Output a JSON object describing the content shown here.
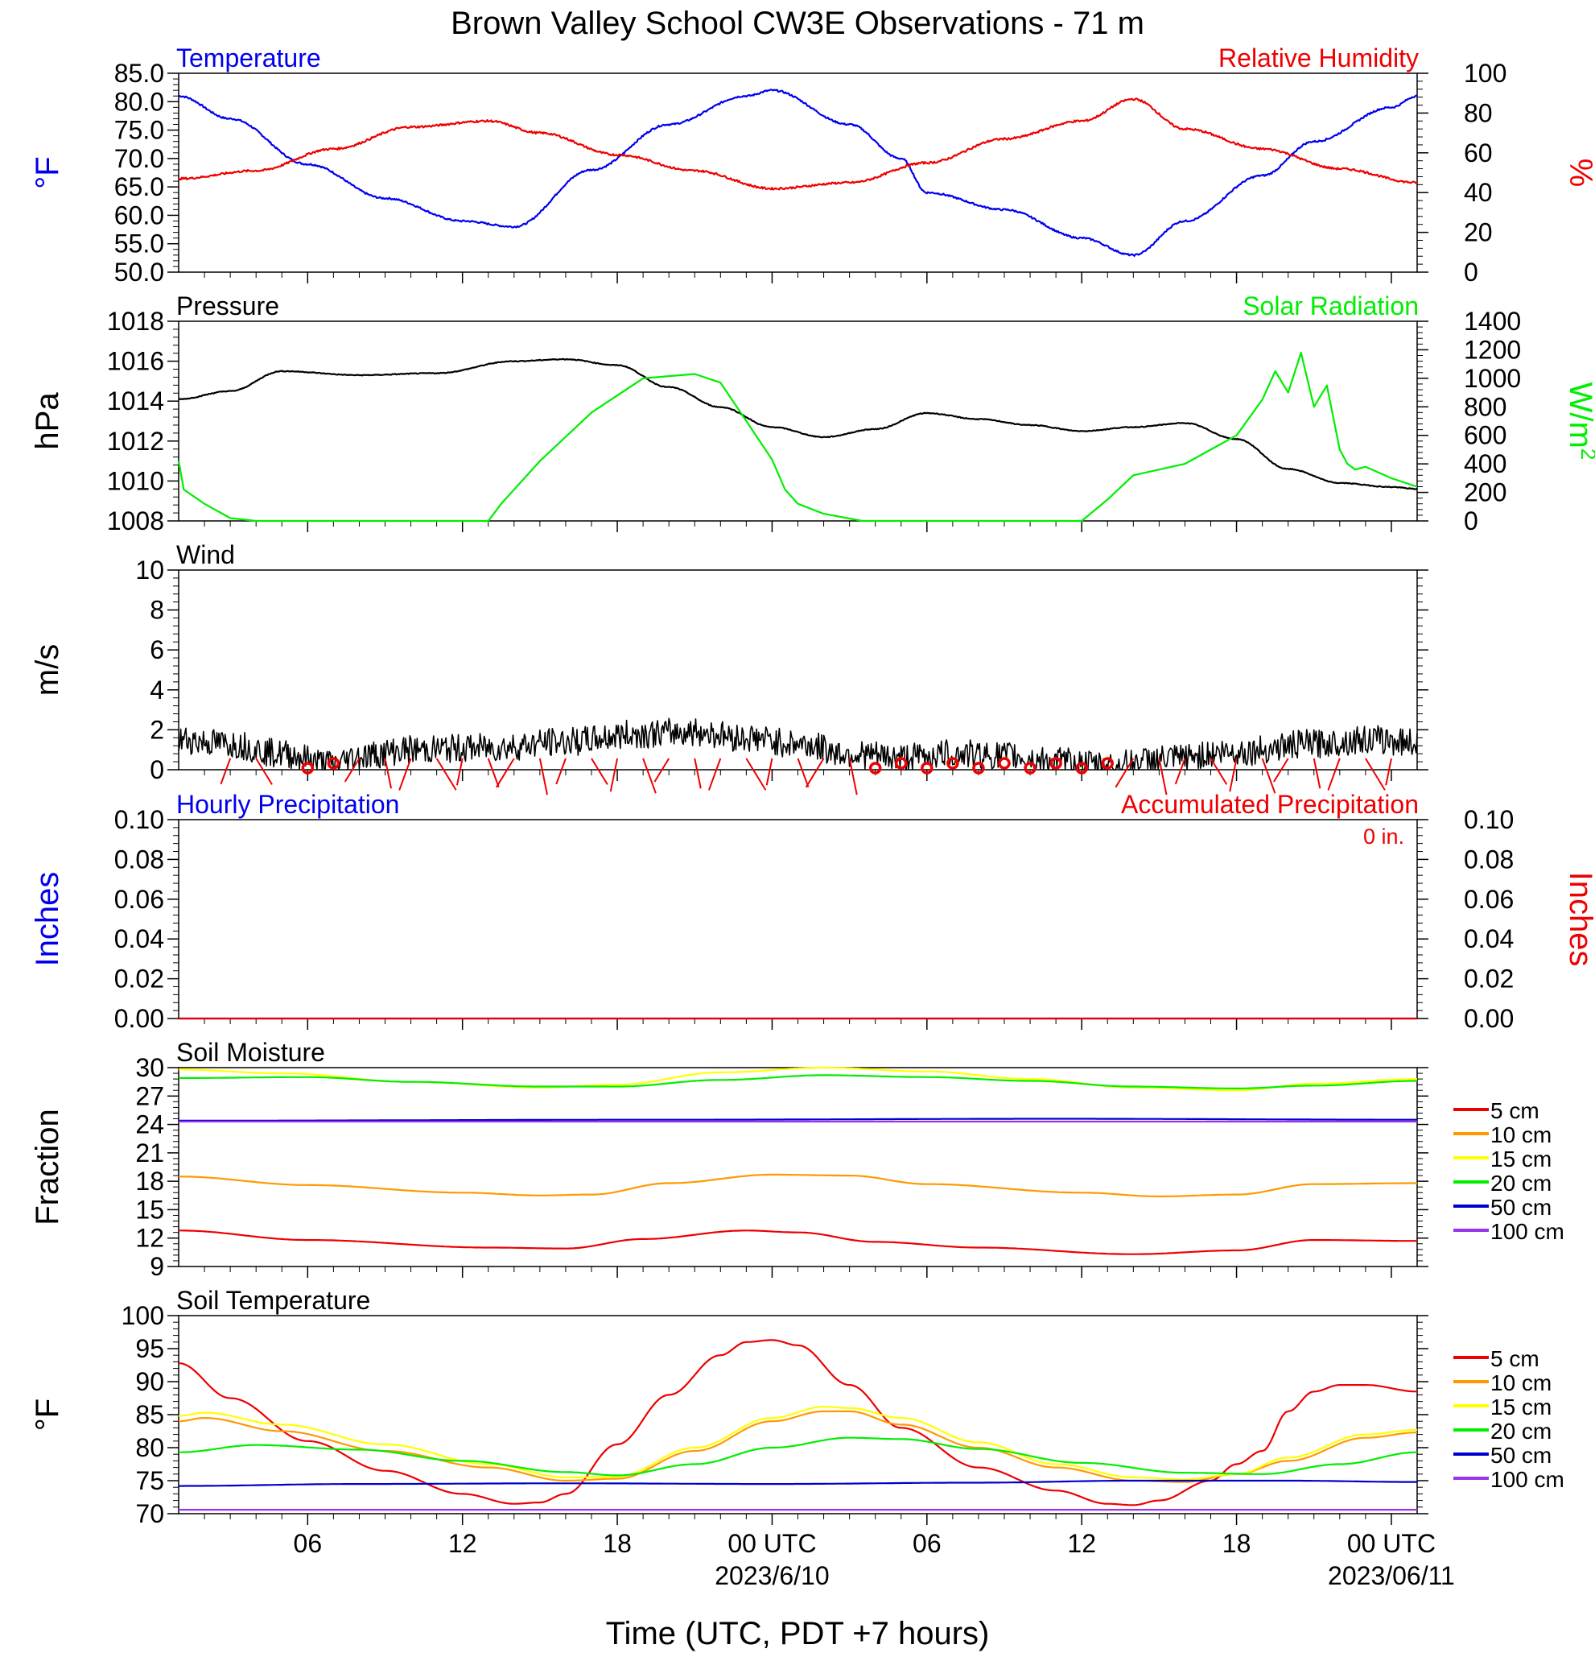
{
  "title": "Brown Valley School CW3E Observations - 71 m",
  "x_axis": {
    "title": "Time (UTC, PDT +7 hours)",
    "ticks": [
      "06",
      "12",
      "18",
      "00 UTC",
      "06",
      "12",
      "18",
      "00 UTC"
    ],
    "tick_hours": [
      6,
      12,
      18,
      24,
      30,
      36,
      42,
      48
    ],
    "date_labels": [
      {
        "hour": 24,
        "text": "2023/6/10"
      },
      {
        "hour": 48,
        "text": "2023/06/11"
      }
    ],
    "range_hours": [
      1,
      49
    ]
  },
  "colors": {
    "blue": "#0000ee",
    "red": "#ee0000",
    "green": "#00ee00",
    "orange": "#ff9900",
    "yellow": "#ffff00",
    "navy": "#0000cc",
    "purple": "#9933ee",
    "black": "#000000"
  },
  "chart_data": [
    {
      "id": "temp_rh",
      "type": "line",
      "left_title": "Temperature",
      "right_title": "Relative Humidity",
      "left_unit": "°F",
      "right_unit": "%",
      "left_ticks": [
        "85.0",
        "80.0",
        "75.0",
        "70.0",
        "65.0",
        "60.0",
        "55.0",
        "50.0"
      ],
      "right_ticks": [
        "100",
        "80",
        "60",
        "40",
        "20",
        "0"
      ],
      "ylim_left": [
        50,
        85
      ],
      "ylim_right": [
        0,
        100
      ],
      "series": [
        {
          "name": "Temperature",
          "axis": "left",
          "color": "#0000ee",
          "x": [
            1,
            3,
            6,
            9,
            12,
            14,
            17,
            20,
            23,
            24,
            27,
            29,
            30,
            33,
            36,
            38,
            40,
            43,
            45,
            48,
            49
          ],
          "y": [
            81,
            77,
            69,
            63,
            59,
            58,
            68,
            76,
            81,
            82,
            76,
            70,
            64,
            61,
            56,
            53,
            59,
            67,
            73,
            79,
            81
          ]
        },
        {
          "name": "Relative Humidity",
          "axis": "right",
          "color": "#ee0000",
          "x": [
            1,
            4,
            7,
            10,
            13,
            15,
            18,
            21,
            24,
            27,
            30,
            33,
            36,
            38,
            40,
            43,
            46,
            49
          ],
          "y": [
            47,
            51,
            62,
            73,
            76,
            70,
            59,
            51,
            42,
            45,
            55,
            67,
            76,
            87,
            72,
            62,
            52,
            45
          ]
        }
      ]
    },
    {
      "id": "pressure_solar",
      "type": "line",
      "left_title": "Pressure",
      "right_title": "Solar Radiation",
      "left_unit": "hPa",
      "right_unit": "W/m",
      "right_unit_sup": "2",
      "left_ticks": [
        "1018",
        "1016",
        "1014",
        "1012",
        "1010",
        "1008"
      ],
      "right_ticks": [
        "1400",
        "1200",
        "1000",
        "800",
        "600",
        "400",
        "200",
        "0"
      ],
      "ylim_left": [
        1008,
        1018
      ],
      "ylim_right": [
        0,
        1400
      ],
      "series": [
        {
          "name": "Pressure",
          "axis": "left",
          "color": "#000000",
          "x": [
            1,
            3,
            5,
            8,
            11,
            14,
            16,
            18,
            20,
            22,
            24,
            26,
            28,
            30,
            32,
            34,
            36,
            38,
            40,
            42,
            44,
            46,
            48,
            49
          ],
          "y": [
            1014.1,
            1014.5,
            1015.5,
            1015.3,
            1015.4,
            1016,
            1016.1,
            1015.8,
            1014.7,
            1013.7,
            1012.7,
            1012.2,
            1012.6,
            1013.4,
            1013.1,
            1012.8,
            1012.5,
            1012.7,
            1012.9,
            1012.1,
            1010.6,
            1009.9,
            1009.7,
            1009.6
          ]
        },
        {
          "name": "Solar Radiation",
          "axis": "right",
          "color": "#00ee00",
          "x": [
            1,
            1.2,
            2,
            3,
            4,
            13,
            13.5,
            15,
            17,
            19,
            21,
            22,
            23,
            24,
            24.5,
            25,
            26,
            27.5,
            36,
            37,
            38,
            40,
            41,
            42,
            43,
            43.5,
            44,
            44.5,
            45,
            45.5,
            46,
            46.3,
            46.6,
            47,
            48,
            49
          ],
          "y": [
            420,
            220,
            120,
            20,
            0,
            0,
            120,
            420,
            760,
            1000,
            1030,
            970,
            700,
            430,
            220,
            120,
            50,
            0,
            0,
            150,
            320,
            400,
            500,
            600,
            850,
            1050,
            900,
            1180,
            800,
            950,
            500,
            400,
            360,
            380,
            300,
            240
          ]
        }
      ]
    },
    {
      "id": "wind",
      "type": "line",
      "left_title": "Wind",
      "left_unit": "m/s",
      "left_ticks": [
        "10",
        "8",
        "6",
        "4",
        "2",
        "0"
      ],
      "ylim_left": [
        0,
        10
      ],
      "series": [
        {
          "name": "Wind",
          "axis": "left",
          "color": "#000000",
          "x": [
            1,
            3,
            5,
            7,
            8,
            10,
            13,
            16,
            19,
            21,
            23,
            25,
            27,
            29,
            31,
            33,
            35,
            37,
            39,
            42,
            45,
            47,
            49
          ],
          "y": [
            1.5,
            1.3,
            0.8,
            0.3,
            0.7,
            1.0,
            1.1,
            1.4,
            1.8,
            1.9,
            1.6,
            1.3,
            0.8,
            0.6,
            0.8,
            0.7,
            0.4,
            0.2,
            0.5,
            0.9,
            1.3,
            1.5,
            1.4
          ]
        }
      ],
      "barb_hours": [
        3,
        4,
        6,
        7,
        8,
        9,
        10,
        11,
        12,
        13,
        14,
        15,
        16,
        17,
        18,
        19,
        20,
        21,
        22,
        23,
        24,
        25,
        26,
        27,
        28,
        29,
        30,
        31,
        32,
        33,
        34,
        35,
        36,
        37,
        38,
        39,
        40,
        41,
        42,
        43,
        44,
        45,
        46,
        47,
        48
      ],
      "calm_hours": [
        6,
        7,
        28,
        29,
        30,
        31,
        32,
        33,
        34,
        35,
        36,
        37
      ]
    },
    {
      "id": "precip",
      "type": "line",
      "left_title": "Hourly Precipitation",
      "right_title": "Accumulated Precipitation",
      "annotation": "0 in.",
      "left_unit": "Inches",
      "right_unit": "Inches",
      "left_ticks": [
        "0.10",
        "0.08",
        "0.06",
        "0.04",
        "0.02",
        "0.00"
      ],
      "right_ticks": [
        "0.10",
        "0.08",
        "0.06",
        "0.04",
        "0.02",
        "0.00"
      ],
      "ylim_left": [
        0,
        0.1
      ],
      "ylim_right": [
        0,
        0.1
      ],
      "series": [
        {
          "name": "Hourly Precipitation",
          "axis": "left",
          "color": "#0000ee",
          "x": [
            1,
            49
          ],
          "y": [
            0,
            0
          ]
        },
        {
          "name": "Accumulated Precipitation",
          "axis": "right",
          "color": "#ee0000",
          "x": [
            1,
            49
          ],
          "y": [
            0,
            0
          ]
        }
      ]
    },
    {
      "id": "soil_moisture",
      "type": "line",
      "left_title": "Soil Moisture",
      "left_unit": "Fraction",
      "left_ticks": [
        "30",
        "27",
        "24",
        "21",
        "18",
        "15",
        "12",
        "9"
      ],
      "ylim_left": [
        9,
        30
      ],
      "legend": [
        "5 cm",
        "10 cm",
        "15 cm",
        "20 cm",
        "50 cm",
        "100 cm"
      ],
      "series": [
        {
          "name": "5 cm",
          "color": "#ee0000",
          "x": [
            1,
            6,
            13,
            16,
            19,
            23,
            25,
            28,
            32,
            38,
            42,
            45,
            49
          ],
          "y": [
            12.8,
            11.8,
            11.0,
            10.9,
            11.9,
            12.8,
            12.6,
            11.6,
            11.0,
            10.3,
            10.7,
            11.8,
            11.7
          ]
        },
        {
          "name": "10 cm",
          "color": "#ff9900",
          "x": [
            1,
            6,
            12,
            15,
            17,
            20,
            24,
            27,
            30,
            36,
            39,
            42,
            45,
            49
          ],
          "y": [
            18.5,
            17.6,
            16.8,
            16.5,
            16.6,
            17.8,
            18.7,
            18.6,
            17.7,
            16.8,
            16.4,
            16.6,
            17.7,
            17.8
          ]
        },
        {
          "name": "15 cm",
          "color": "#ffff00",
          "x": [
            1,
            5,
            10,
            15,
            18,
            22,
            26,
            30,
            34,
            38,
            42,
            45,
            49
          ],
          "y": [
            29.8,
            29.4,
            28.5,
            27.9,
            28.2,
            29.5,
            30.0,
            29.6,
            28.8,
            27.9,
            27.6,
            28.3,
            28.8
          ]
        },
        {
          "name": "20 cm",
          "color": "#00ee00",
          "x": [
            1,
            6,
            10,
            15,
            18,
            22,
            26,
            30,
            34,
            38,
            42,
            45,
            49
          ],
          "y": [
            28.9,
            29.0,
            28.5,
            28.0,
            28.0,
            28.7,
            29.2,
            29.0,
            28.6,
            28.0,
            27.8,
            28.1,
            28.6
          ]
        },
        {
          "name": "50 cm",
          "color": "#0000cc",
          "x": [
            1,
            20,
            35,
            49
          ],
          "y": [
            24.4,
            24.5,
            24.6,
            24.5
          ]
        },
        {
          "name": "100 cm",
          "color": "#9933ee",
          "x": [
            1,
            49
          ],
          "y": [
            24.3,
            24.3
          ]
        }
      ]
    },
    {
      "id": "soil_temperature",
      "type": "line",
      "left_title": "Soil Temperature",
      "left_unit": "°F",
      "left_ticks": [
        "100",
        "95",
        "90",
        "85",
        "80",
        "75",
        "70"
      ],
      "ylim_left": [
        70,
        100
      ],
      "legend": [
        "5 cm",
        "10 cm",
        "15 cm",
        "20 cm",
        "50 cm",
        "100 cm"
      ],
      "series": [
        {
          "name": "5 cm",
          "color": "#ee0000",
          "x": [
            1,
            3,
            6,
            9,
            12,
            14,
            15,
            16,
            18,
            20,
            22,
            23,
            24,
            25,
            27,
            29,
            32,
            35,
            37,
            38,
            39,
            41,
            42,
            43,
            44,
            45,
            46,
            47,
            49
          ],
          "y": [
            92.8,
            87.5,
            81.0,
            76.5,
            73.0,
            71.5,
            71.7,
            73.0,
            80.5,
            88.0,
            94.0,
            96.0,
            96.3,
            95.5,
            89.5,
            83.0,
            77.0,
            73.5,
            71.5,
            71.3,
            72.0,
            75.0,
            77.5,
            79.5,
            85.5,
            88.5,
            89.5,
            89.5,
            88.5
          ]
        },
        {
          "name": "10 cm",
          "color": "#ff9900",
          "x": [
            1,
            2,
            5,
            9,
            13,
            16,
            18,
            21,
            24,
            26,
            27,
            29,
            32,
            35,
            38,
            40,
            42,
            44,
            47,
            49
          ],
          "y": [
            84.0,
            84.5,
            82.5,
            79.5,
            77.0,
            75.0,
            75.3,
            79.5,
            84.0,
            85.5,
            85.5,
            83.5,
            80.0,
            77.0,
            75.0,
            74.8,
            76.0,
            78.0,
            81.5,
            82.3
          ]
        },
        {
          "name": "15 cm",
          "color": "#ffff00",
          "x": [
            1,
            2,
            5,
            9,
            13,
            16,
            18,
            21,
            24,
            26,
            27,
            29,
            32,
            35,
            38,
            40,
            42,
            44,
            47,
            49
          ],
          "y": [
            84.8,
            85.3,
            83.5,
            80.5,
            77.5,
            75.5,
            75.6,
            80.0,
            84.5,
            86.2,
            86.0,
            84.5,
            80.8,
            77.5,
            75.5,
            75.2,
            76.0,
            78.5,
            82.0,
            82.7
          ]
        },
        {
          "name": "20 cm",
          "color": "#00ee00",
          "x": [
            1,
            4,
            8,
            12,
            16,
            18,
            21,
            24,
            27,
            29,
            32,
            36,
            40,
            43,
            46,
            49
          ],
          "y": [
            79.3,
            80.4,
            79.7,
            78.0,
            76.3,
            75.8,
            77.5,
            80.0,
            81.5,
            81.3,
            79.8,
            77.7,
            76.2,
            76.0,
            77.5,
            79.3
          ]
        },
        {
          "name": "50 cm",
          "color": "#0000cc",
          "x": [
            1,
            8,
            16,
            24,
            32,
            38,
            44,
            49
          ],
          "y": [
            74.2,
            74.5,
            74.6,
            74.5,
            74.7,
            75.0,
            75.0,
            74.8
          ]
        },
        {
          "name": "100 cm",
          "color": "#9933ee",
          "x": [
            1,
            49
          ],
          "y": [
            70.6,
            70.6
          ]
        }
      ]
    }
  ]
}
